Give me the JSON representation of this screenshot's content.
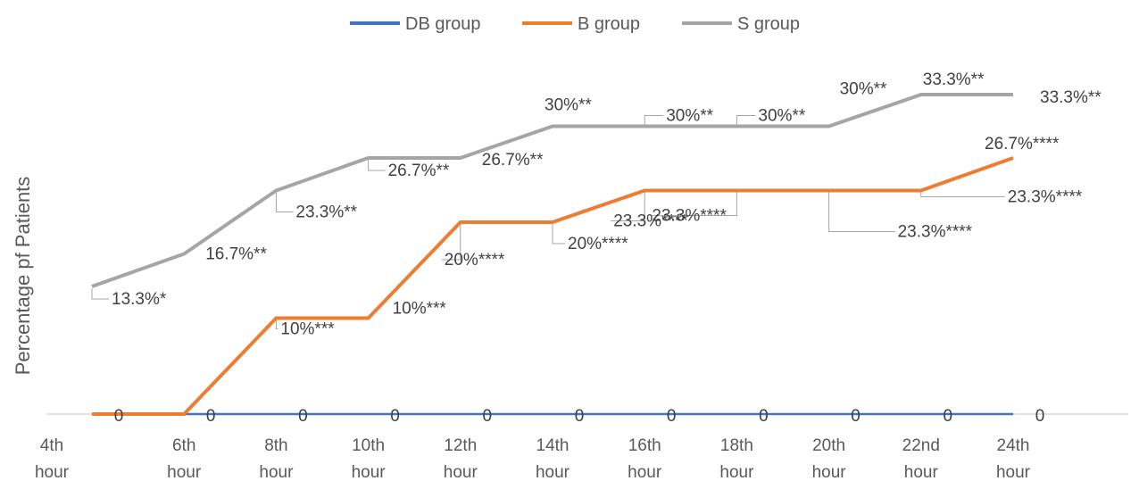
{
  "chart_data": {
    "type": "line",
    "title": "",
    "xlabel": "",
    "ylabel": "Percentage pf Patients",
    "categories": [
      "4th hour",
      "6th hour",
      "8th hour",
      "10th hour",
      "12th hour",
      "14th hour",
      "16th hour",
      "18th hour",
      "20th hour",
      "22nd hour",
      "24th hour"
    ],
    "ylim": [
      0,
      40
    ],
    "grid": false,
    "legend_position": "top",
    "series": [
      {
        "name": "DB group",
        "color": "#4472c4",
        "values": [
          0,
          0,
          0,
          0,
          0,
          0,
          0,
          0,
          0,
          0,
          0
        ],
        "labels": [
          "0",
          "0",
          "0",
          "0",
          "0",
          "0",
          "0",
          "0",
          "0",
          "0",
          "0"
        ]
      },
      {
        "name": "B group",
        "color": "#ed7d31",
        "values": [
          0,
          0,
          10,
          10,
          20,
          20,
          23.3,
          23.3,
          23.3,
          23.3,
          26.7
        ],
        "labels": [
          "0",
          "0",
          "10%***",
          "10%***",
          "20%****",
          "20%****",
          "23.3%****",
          "23.3%****",
          "23.3%****",
          "23.3%****",
          "26.7%****"
        ]
      },
      {
        "name": "S group",
        "color": "#a5a5a5",
        "values": [
          13.3,
          16.7,
          23.3,
          26.7,
          26.7,
          30,
          30,
          30,
          30,
          33.3,
          33.3
        ],
        "labels": [
          "13.3%*",
          "16.7%**",
          "23.3%**",
          "26.7%**",
          "26.7%**",
          "30%**",
          "30%**",
          "30%**",
          "30%**",
          "33.3%**",
          "33.3%**"
        ]
      }
    ]
  }
}
